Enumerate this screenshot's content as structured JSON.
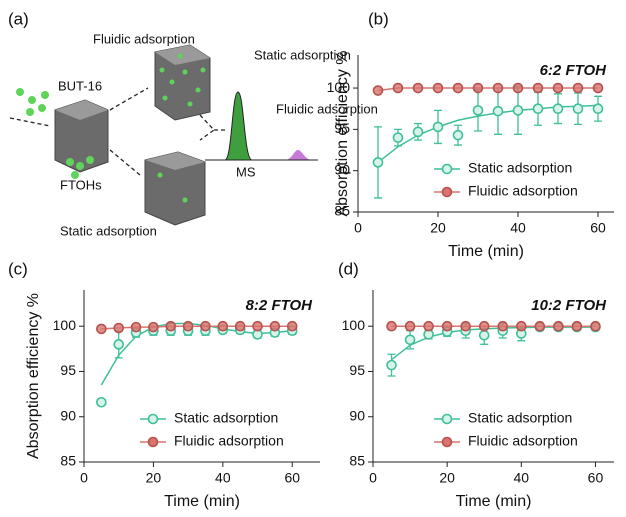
{
  "diagram": {
    "label": "(a)",
    "fluidic_top": "Fluidic adsorption",
    "mof": "BUT-16",
    "static_peak": "Static adsorption",
    "fluidic_peak": "Fluidic adsorption",
    "ms": "MS",
    "ftohs": "FTOHs",
    "static_bottom": "Static adsorption"
  },
  "chart_data": [
    {
      "type": "scatter",
      "panel": "(b)",
      "annotation": "6:2 FTOH",
      "xlabel": "Time (min)",
      "ylabel": "Absorption efficiency %",
      "xlim": [
        0,
        64
      ],
      "ylim": [
        85,
        104
      ],
      "xticks": [
        0,
        20,
        40,
        60
      ],
      "yticks": [
        85,
        90,
        95,
        100
      ],
      "legend": "lower right",
      "series": [
        {
          "name": "Static adsorption",
          "color": "#3dbf9a",
          "x": [
            5,
            10,
            15,
            20,
            25,
            30,
            35,
            40,
            45,
            50,
            55,
            60
          ],
          "values": [
            91,
            94,
            94.7,
            95.3,
            94.3,
            97.3,
            97.2,
            97.3,
            97.5,
            97.5,
            97.5,
            97.5
          ],
          "errors": [
            4.3,
            1,
            1,
            2,
            1.2,
            2.5,
            2.8,
            2.9,
            2,
            1.8,
            1.9,
            1.5
          ],
          "fit_x": [
            5,
            10,
            15,
            20,
            25,
            30,
            35,
            40,
            45,
            50,
            55,
            60
          ],
          "fit": [
            91,
            92.9,
            94.3,
            95.3,
            96.1,
            96.6,
            97,
            97.3,
            97.5,
            97.7,
            97.8,
            97.9
          ]
        },
        {
          "name": "Fluidic adsorption",
          "color": "#d9736e",
          "line": true,
          "x": [
            5,
            10,
            15,
            20,
            25,
            30,
            35,
            40,
            45,
            50,
            55,
            60
          ],
          "values": [
            99.7,
            100,
            100,
            100,
            100,
            100,
            100,
            100,
            100,
            100,
            100,
            100
          ]
        }
      ]
    },
    {
      "type": "scatter",
      "panel": "(c)",
      "annotation": "8:2 FTOH",
      "xlabel": "Time (min)",
      "ylabel": "Absorption efficiency %",
      "xlim": [
        0,
        68
      ],
      "ylim": [
        85,
        104
      ],
      "xticks": [
        0,
        20,
        40,
        60
      ],
      "yticks": [
        85,
        90,
        95,
        100
      ],
      "legend": "lower right",
      "series": [
        {
          "name": "Static adsorption",
          "color": "#3dbf9a",
          "x": [
            5,
            10,
            15,
            20,
            25,
            30,
            35,
            40,
            45,
            50,
            55,
            60
          ],
          "values": [
            91.6,
            98,
            99.3,
            99.5,
            99.5,
            99.5,
            99.5,
            99.6,
            99.6,
            99.1,
            99.3,
            99.5
          ],
          "errors": [
            0,
            1.5,
            0.5,
            0.5,
            0.5,
            0.5,
            0.5,
            0.4,
            0.4,
            0.4,
            0.4,
            0.4
          ],
          "fit_x": [
            5,
            10,
            15,
            20,
            25,
            30,
            35,
            40,
            45,
            50,
            55,
            60
          ],
          "fit": [
            93.5,
            96.8,
            98.9,
            99.9,
            100.3,
            100.3,
            100.1,
            99.7,
            99.4,
            99.2,
            99.3,
            99.5
          ]
        },
        {
          "name": "Fluidic adsorption",
          "color": "#d9736e",
          "line": true,
          "x": [
            5,
            10,
            15,
            20,
            25,
            30,
            35,
            40,
            45,
            50,
            55,
            60
          ],
          "values": [
            99.7,
            99.8,
            99.9,
            99.9,
            100,
            100,
            100,
            100,
            100,
            100,
            100,
            100
          ]
        }
      ]
    },
    {
      "type": "scatter",
      "panel": "(d)",
      "annotation": "10:2 FTOH",
      "xlabel": "Time (min)",
      "xlim": [
        0,
        65
      ],
      "ylim": [
        85,
        104
      ],
      "xticks": [
        0,
        20,
        40,
        60
      ],
      "yticks": [
        85,
        90,
        95,
        100
      ],
      "legend": "lower right",
      "series": [
        {
          "name": "Static adsorption",
          "color": "#3dbf9a",
          "x": [
            5,
            10,
            15,
            20,
            25,
            30,
            35,
            40,
            45,
            50,
            55,
            60
          ],
          "values": [
            95.7,
            98.5,
            99.1,
            99.4,
            99.5,
            99,
            99.5,
            99.2,
            99.9,
            99.9,
            99.9,
            99.9
          ],
          "errors": [
            1.2,
            1,
            0.5,
            0.5,
            0.8,
            1,
            0.8,
            0.8,
            0.3,
            0.2,
            0.2,
            0.2
          ],
          "fit_x": [
            5,
            10,
            15,
            20,
            25,
            30,
            35,
            40,
            45,
            50,
            55,
            60
          ],
          "fit": [
            96.3,
            97.9,
            98.8,
            99.3,
            99.6,
            99.7,
            99.8,
            99.85,
            99.9,
            99.9,
            99.9,
            99.9
          ]
        },
        {
          "name": "Fluidic adsorption",
          "color": "#d9736e",
          "line": true,
          "x": [
            5,
            10,
            15,
            20,
            25,
            30,
            35,
            40,
            45,
            50,
            55,
            60
          ],
          "values": [
            100,
            100,
            100,
            100,
            100,
            100,
            100,
            100,
            100,
            100,
            100,
            100
          ]
        }
      ]
    }
  ]
}
